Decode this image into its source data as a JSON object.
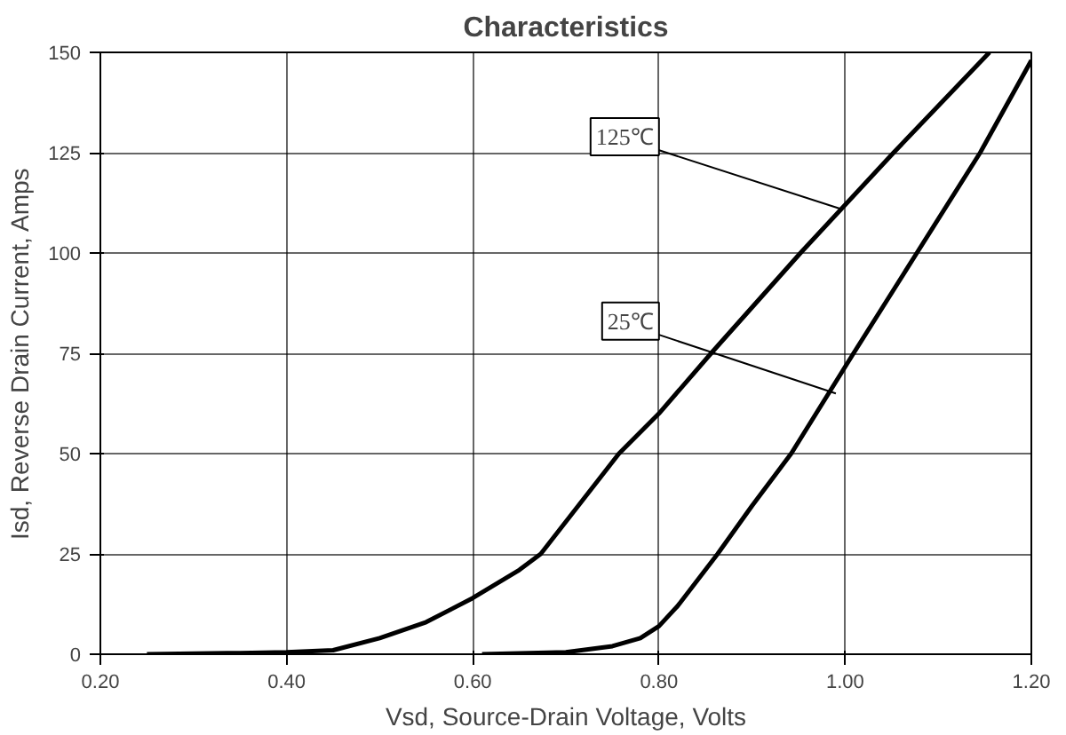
{
  "chart_data": {
    "type": "line",
    "title": "Characteristics",
    "xlabel": "Vsd, Source-Drain Voltage, Volts",
    "ylabel": "Isd, Reverse Drain Current, Amps",
    "series": [
      {
        "color": "#000000",
        "x": [
          0.25,
          0.35,
          0.4,
          0.45,
          0.5,
          0.55,
          0.6,
          0.65,
          0.673,
          0.757,
          0.8,
          0.856,
          0.952,
          1.052,
          1.155
        ],
        "values": [
          0,
          0.3,
          0.5,
          1,
          4,
          8,
          14,
          21,
          25,
          50,
          60,
          75,
          100,
          125,
          150
        ]
      },
      {
        "color": "#000000",
        "x": [
          0.61,
          0.7,
          0.75,
          0.78,
          0.8,
          0.82,
          0.863,
          0.9,
          0.942,
          1.009,
          1.077,
          1.145,
          1.2
        ],
        "values": [
          0,
          0.5,
          2,
          4,
          7,
          12,
          25,
          37,
          50,
          75,
          100,
          125,
          148
        ]
      }
    ],
    "annotations": [
      {
        "text": "125℃",
        "x": 0.995,
        "y": 111
      },
      {
        "text": "25℃",
        "x": 0.99,
        "y": 65
      }
    ],
    "xlim": [
      0.2,
      1.2
    ],
    "ylim": [
      0,
      150
    ],
    "xticks": [
      {
        "value": 0.2,
        "label": "0.20"
      },
      {
        "value": 0.4,
        "label": "0.40"
      },
      {
        "value": 0.6,
        "label": "0.60"
      },
      {
        "value": 0.8,
        "label": "0.80"
      },
      {
        "value": 1.0,
        "label": "1.00"
      },
      {
        "value": 1.2,
        "label": "1.20"
      }
    ],
    "yticks": [
      0,
      25,
      50,
      75,
      100,
      125,
      150
    ],
    "grid": true,
    "marker": "none",
    "line_style": "solid"
  }
}
